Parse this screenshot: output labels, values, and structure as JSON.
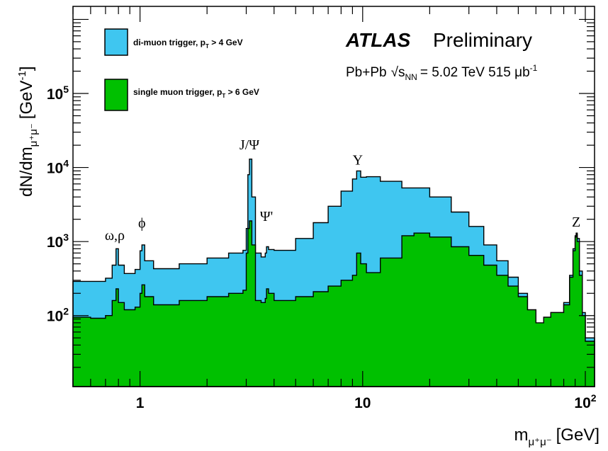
{
  "chart_data": {
    "type": "area",
    "title": "ATLAS",
    "subtitle": "Preliminary",
    "collision": "Pb+Pb",
    "energy_symbol": "√s",
    "energy_subscript": "NN",
    "energy_text": "= 5.02 TeV 515 μb",
    "energy_superscript": "-1",
    "xlabel_main": "m",
    "xlabel_sub": "μ⁺μ⁻",
    "xlabel_unit": "[GeV]",
    "ylabel_main": "dN/dm",
    "ylabel_sub": "μ⁺μ⁻",
    "ylabel_unit_open": "[GeV",
    "ylabel_unit_sup": "-1",
    "ylabel_unit_close": "]",
    "x_scale": "log",
    "y_scale": "log",
    "xlim": [
      0.5,
      110
    ],
    "ylim": [
      11,
      1500000
    ],
    "x_ticks": [
      {
        "value": 1,
        "base": "1",
        "exp": ""
      },
      {
        "value": 10,
        "base": "10",
        "exp": ""
      },
      {
        "value": 100,
        "base": "10",
        "exp": "2"
      }
    ],
    "y_ticks": [
      {
        "value": 100,
        "base": "10",
        "exp": "2"
      },
      {
        "value": 1000,
        "base": "10",
        "exp": "3"
      },
      {
        "value": 10000,
        "base": "10",
        "exp": "4"
      },
      {
        "value": 100000,
        "base": "10",
        "exp": "5"
      }
    ],
    "legend_position": "top-left",
    "series": [
      {
        "name": "di-muon trigger, p",
        "name_sub": "T",
        "name_tail": " > 4 GeV",
        "color": "#3fc6f0",
        "points": [
          [
            0.5,
            290
          ],
          [
            0.6,
            290
          ],
          [
            0.7,
            320
          ],
          [
            0.75,
            480
          ],
          [
            0.78,
            800
          ],
          [
            0.8,
            480
          ],
          [
            0.85,
            370
          ],
          [
            0.95,
            420
          ],
          [
            1.0,
            750
          ],
          [
            1.02,
            900
          ],
          [
            1.05,
            550
          ],
          [
            1.15,
            430
          ],
          [
            1.5,
            500
          ],
          [
            2.0,
            600
          ],
          [
            2.5,
            700
          ],
          [
            2.9,
            760
          ],
          [
            3.0,
            1500
          ],
          [
            3.05,
            8000
          ],
          [
            3.1,
            13000
          ],
          [
            3.18,
            4000
          ],
          [
            3.3,
            700
          ],
          [
            3.5,
            620
          ],
          [
            3.65,
            700
          ],
          [
            3.7,
            850
          ],
          [
            3.78,
            780
          ],
          [
            4.0,
            760
          ],
          [
            5.0,
            1100
          ],
          [
            6.0,
            1800
          ],
          [
            7.0,
            3000
          ],
          [
            8.0,
            4800
          ],
          [
            9.0,
            7000
          ],
          [
            9.4,
            9000
          ],
          [
            9.8,
            7400
          ],
          [
            10.4,
            7500
          ],
          [
            12,
            6500
          ],
          [
            15,
            5300
          ],
          [
            20,
            4000
          ],
          [
            25,
            2500
          ],
          [
            30,
            1600
          ],
          [
            35,
            900
          ],
          [
            40,
            550
          ],
          [
            45,
            330
          ],
          [
            50,
            200
          ],
          [
            55,
            110
          ],
          [
            60,
            75
          ],
          [
            65,
            95
          ],
          [
            70,
            110
          ],
          [
            80,
            150
          ],
          [
            85,
            350
          ],
          [
            88,
            800
          ],
          [
            90,
            1200
          ],
          [
            91,
            1300
          ],
          [
            92,
            1100
          ],
          [
            94,
            400
          ],
          [
            97,
            110
          ],
          [
            100,
            50
          ],
          [
            110,
            25
          ]
        ]
      },
      {
        "name": "single muon trigger, p",
        "name_sub": "T",
        "name_tail": " > 6 GeV",
        "color": "#00c000",
        "points": [
          [
            0.5,
            95
          ],
          [
            0.6,
            92
          ],
          [
            0.7,
            100
          ],
          [
            0.75,
            160
          ],
          [
            0.78,
            230
          ],
          [
            0.8,
            150
          ],
          [
            0.85,
            120
          ],
          [
            0.95,
            130
          ],
          [
            1.0,
            200
          ],
          [
            1.02,
            260
          ],
          [
            1.05,
            180
          ],
          [
            1.15,
            140
          ],
          [
            1.5,
            160
          ],
          [
            2.0,
            180
          ],
          [
            2.5,
            200
          ],
          [
            2.9,
            220
          ],
          [
            3.0,
            700
          ],
          [
            3.05,
            1500
          ],
          [
            3.1,
            1900
          ],
          [
            3.18,
            900
          ],
          [
            3.3,
            160
          ],
          [
            3.5,
            150
          ],
          [
            3.65,
            170
          ],
          [
            3.7,
            230
          ],
          [
            3.78,
            200
          ],
          [
            4.0,
            160
          ],
          [
            5.0,
            180
          ],
          [
            6.0,
            210
          ],
          [
            7.0,
            250
          ],
          [
            8.0,
            300
          ],
          [
            9.0,
            350
          ],
          [
            9.4,
            700
          ],
          [
            9.8,
            500
          ],
          [
            10.4,
            380
          ],
          [
            12,
            600
          ],
          [
            15,
            1200
          ],
          [
            17,
            1300
          ],
          [
            20,
            1150
          ],
          [
            25,
            850
          ],
          [
            30,
            650
          ],
          [
            35,
            480
          ],
          [
            40,
            350
          ],
          [
            45,
            250
          ],
          [
            50,
            180
          ],
          [
            55,
            120
          ],
          [
            60,
            80
          ],
          [
            65,
            95
          ],
          [
            70,
            110
          ],
          [
            80,
            140
          ],
          [
            85,
            330
          ],
          [
            88,
            750
          ],
          [
            90,
            1150
          ],
          [
            91,
            1250
          ],
          [
            92,
            1000
          ],
          [
            94,
            350
          ],
          [
            97,
            100
          ],
          [
            100,
            45
          ],
          [
            110,
            22
          ]
        ]
      }
    ],
    "annotations": [
      {
        "text": "ω,ρ",
        "x": 0.77,
        "y": 1050
      },
      {
        "text": "ϕ",
        "x": 1.02,
        "y": 1550
      },
      {
        "text": "J/Ψ",
        "x": 3.1,
        "y": 17500
      },
      {
        "text": "Ψ'",
        "x": 3.7,
        "y": 1900
      },
      {
        "text": "Υ",
        "x": 9.5,
        "y": 11000
      },
      {
        "text": "Z",
        "x": 91,
        "y": 1600
      }
    ]
  }
}
